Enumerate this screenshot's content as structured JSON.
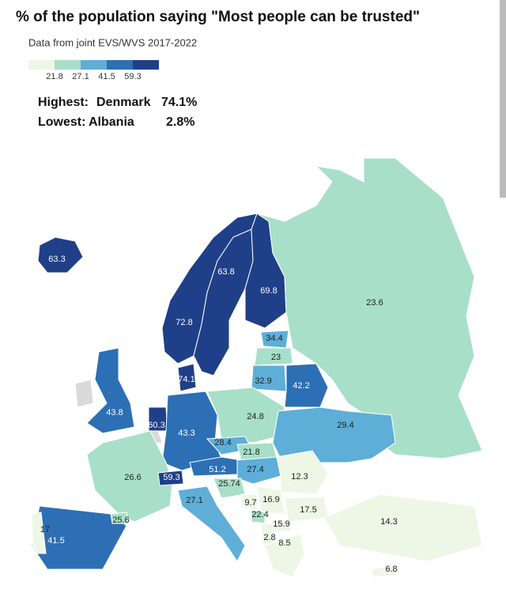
{
  "title": "% of the population saying \"Most people can be trusted\"",
  "subtitle": "Data from joint EVS/WVS 2017-2022",
  "legend": {
    "breaks": [
      21.8,
      27.1,
      41.5,
      59.3
    ],
    "colors": [
      "#eef7e6",
      "#a8dfc9",
      "#5eaed8",
      "#2c6fb5",
      "#1f3f88"
    ]
  },
  "highlights": [
    {
      "label": "Highest:",
      "country": "Denmark",
      "value": "74.1%"
    },
    {
      "label": "Lowest:",
      "country": "Albania",
      "value": "2.8%"
    }
  ],
  "values": [
    63.3,
    72.8,
    63.8,
    69.8,
    23.6,
    34.4,
    23,
    32.9,
    42.2,
    74.1,
    43.8,
    60.3,
    43.3,
    24.8,
    29.4,
    28.4,
    21.8,
    51.2,
    27.4,
    12.3,
    26.6,
    59.3,
    25.74,
    27.1,
    9.7,
    16.9,
    22.4,
    17.5,
    15.9,
    2.8,
    8.5,
    14.3,
    41.5,
    25.6,
    17,
    6.8
  ]
}
